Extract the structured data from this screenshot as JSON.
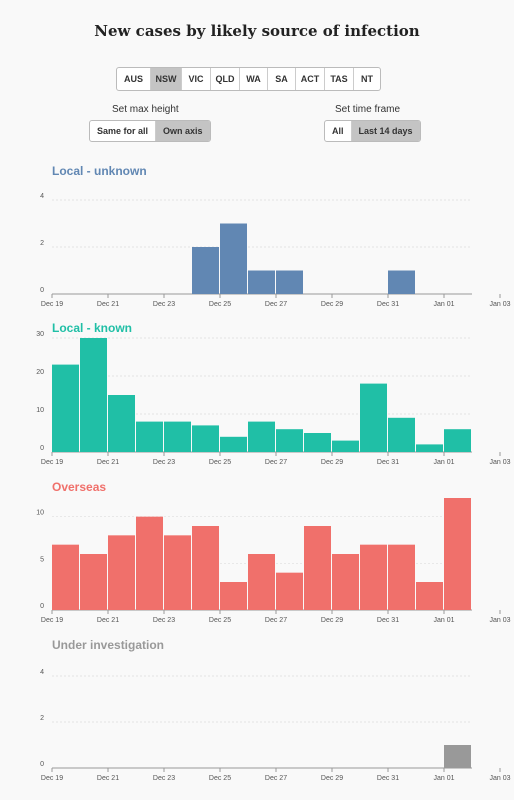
{
  "title": "New cases by likely source of infection",
  "states": [
    "AUS",
    "NSW",
    "VIC",
    "QLD",
    "WA",
    "SA",
    "ACT",
    "TAS",
    "NT"
  ],
  "active_state": "NSW",
  "controls": {
    "max_height_label": "Set max height",
    "max_height_options": [
      "Same for all",
      "Own axis"
    ],
    "max_height_active": "Own axis",
    "timeframe_label": "Set time frame",
    "timeframe_options": [
      "All",
      "Last 14 days"
    ],
    "timeframe_active": "Last 14 days"
  },
  "x_ticks": [
    "Dec 19",
    "Dec 21",
    "Dec 23",
    "Dec 25",
    "Dec 27",
    "Dec 29",
    "Dec 31",
    "Jan 01",
    "Jan 03"
  ],
  "chart_data": [
    {
      "type": "bar",
      "title": "Local - unknown",
      "color": "#6187b3",
      "x": [
        "Dec 19",
        "Dec 20",
        "Dec 21",
        "Dec 22",
        "Dec 23",
        "Dec 24",
        "Dec 25",
        "Dec 26",
        "Dec 27",
        "Dec 28",
        "Dec 29",
        "Dec 30",
        "Dec 31",
        "Jan 01",
        "Jan 02"
      ],
      "values": [
        0,
        0,
        0,
        0,
        0,
        2,
        3,
        1,
        1,
        0,
        0,
        0,
        1,
        0,
        0
      ],
      "y_ticks": [
        0,
        2,
        4
      ],
      "ylim": [
        0,
        4
      ]
    },
    {
      "type": "bar",
      "title": "Local - known",
      "color": "#20bfa6",
      "x": [
        "Dec 19",
        "Dec 20",
        "Dec 21",
        "Dec 22",
        "Dec 23",
        "Dec 24",
        "Dec 25",
        "Dec 26",
        "Dec 27",
        "Dec 28",
        "Dec 29",
        "Dec 30",
        "Dec 31",
        "Jan 01",
        "Jan 02"
      ],
      "values": [
        23,
        30,
        15,
        8,
        8,
        7,
        4,
        8,
        6,
        5,
        3,
        18,
        9,
        2,
        6
      ],
      "y_ticks": [
        0,
        10,
        20,
        30
      ],
      "ylim": [
        0,
        30
      ]
    },
    {
      "type": "bar",
      "title": "Overseas",
      "color": "#f0706b",
      "x": [
        "Dec 19",
        "Dec 20",
        "Dec 21",
        "Dec 22",
        "Dec 23",
        "Dec 24",
        "Dec 25",
        "Dec 26",
        "Dec 27",
        "Dec 28",
        "Dec 29",
        "Dec 30",
        "Dec 31",
        "Jan 01",
        "Jan 02"
      ],
      "values": [
        7,
        6,
        8,
        10,
        8,
        9,
        3,
        6,
        4,
        9,
        6,
        7,
        7,
        3,
        12
      ],
      "y_ticks": [
        0,
        5,
        10
      ],
      "ylim": [
        0,
        12
      ]
    },
    {
      "type": "bar",
      "title": "Under investigation",
      "color": "#999999",
      "x": [
        "Dec 19",
        "Dec 20",
        "Dec 21",
        "Dec 22",
        "Dec 23",
        "Dec 24",
        "Dec 25",
        "Dec 26",
        "Dec 27",
        "Dec 28",
        "Dec 29",
        "Dec 30",
        "Dec 31",
        "Jan 01",
        "Jan 02"
      ],
      "values": [
        0,
        0,
        0,
        0,
        0,
        0,
        0,
        0,
        0,
        0,
        0,
        0,
        0,
        0,
        1
      ],
      "y_ticks": [
        0,
        2,
        4
      ],
      "ylim": [
        0,
        4
      ]
    }
  ]
}
